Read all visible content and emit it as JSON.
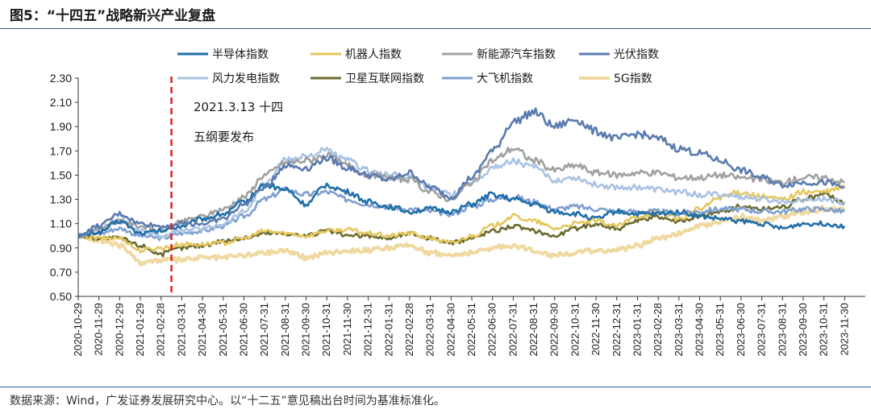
{
  "figure": {
    "title": "图5：“十四五”战略新兴产业复盘",
    "source": "数据来源：Wind，广发证券发展研究中心。以“十二五”意见稿出台时间为基准标准化。"
  },
  "chart_data": {
    "type": "line",
    "title": "“十四五”战略新兴产业复盘",
    "xlabel": "",
    "ylabel": "",
    "ylim": [
      0.5,
      2.3
    ],
    "yticks": [
      "0.50",
      "0.70",
      "0.90",
      "1.10",
      "1.30",
      "1.50",
      "1.70",
      "1.90",
      "2.10",
      "2.30"
    ],
    "categories": [
      "2020-10-29",
      "2020-11-29",
      "2020-12-29",
      "2021-01-29",
      "2021-02-28",
      "2021-03-31",
      "2021-04-30",
      "2021-05-31",
      "2021-06-30",
      "2021-07-31",
      "2021-08-31",
      "2021-09-30",
      "2021-10-31",
      "2021-11-30",
      "2021-12-31",
      "2022-01-31",
      "2022-02-28",
      "2022-03-31",
      "2022-04-30",
      "2022-05-31",
      "2022-06-30",
      "2022-07-31",
      "2022-08-31",
      "2022-09-30",
      "2022-10-31",
      "2022-11-30",
      "2022-12-31",
      "2023-01-31",
      "2023-02-28",
      "2023-03-31",
      "2023-04-30",
      "2023-05-31",
      "2023-06-30",
      "2023-07-31",
      "2023-08-31",
      "2023-09-30",
      "2023-10-31",
      "2023-11-30"
    ],
    "legend_position": "top",
    "annotation": {
      "line1": "2021.3.13 十四",
      "line2": "五纲要发布",
      "x_index": 4.5,
      "style": "red dashed vertical line"
    },
    "series": [
      {
        "name": "半导体指数",
        "color": "#1f6fa8",
        "values": [
          1.0,
          1.03,
          1.12,
          1.02,
          1.04,
          1.08,
          1.14,
          1.18,
          1.28,
          1.42,
          1.38,
          1.26,
          1.42,
          1.36,
          1.28,
          1.24,
          1.2,
          1.22,
          1.2,
          1.26,
          1.34,
          1.3,
          1.26,
          1.2,
          1.18,
          1.14,
          1.2,
          1.18,
          1.18,
          1.2,
          1.16,
          1.14,
          1.12,
          1.1,
          1.06,
          1.1,
          1.1,
          1.08
        ]
      },
      {
        "name": "机器人指数",
        "color": "#e5c75f",
        "values": [
          1.0,
          0.98,
          0.98,
          0.88,
          0.9,
          0.93,
          0.93,
          0.94,
          0.98,
          1.04,
          1.02,
          1.0,
          1.04,
          1.05,
          1.02,
          1.0,
          1.02,
          0.98,
          0.94,
          1.0,
          1.08,
          1.16,
          1.12,
          1.06,
          1.1,
          1.12,
          1.08,
          1.16,
          1.2,
          1.14,
          1.22,
          1.32,
          1.36,
          1.32,
          1.3,
          1.36,
          1.36,
          1.4
        ]
      },
      {
        "name": "新能源汽车指数",
        "color": "#a0a0a0",
        "values": [
          1.0,
          1.06,
          1.12,
          1.08,
          1.04,
          1.12,
          1.16,
          1.22,
          1.32,
          1.5,
          1.6,
          1.62,
          1.66,
          1.58,
          1.5,
          1.48,
          1.46,
          1.36,
          1.3,
          1.44,
          1.62,
          1.72,
          1.62,
          1.54,
          1.58,
          1.52,
          1.5,
          1.52,
          1.52,
          1.48,
          1.48,
          1.5,
          1.48,
          1.46,
          1.44,
          1.48,
          1.48,
          1.44
        ]
      },
      {
        "name": "光伏指数",
        "color": "#5a7bb0",
        "values": [
          1.0,
          1.08,
          1.18,
          1.1,
          1.08,
          1.1,
          1.1,
          1.14,
          1.26,
          1.4,
          1.58,
          1.56,
          1.64,
          1.56,
          1.5,
          1.46,
          1.52,
          1.4,
          1.32,
          1.48,
          1.7,
          1.94,
          2.02,
          1.9,
          1.96,
          1.86,
          1.8,
          1.84,
          1.8,
          1.72,
          1.68,
          1.62,
          1.54,
          1.48,
          1.42,
          1.44,
          1.44,
          1.4
        ]
      },
      {
        "name": "风力发电指数",
        "color": "#a9c2e3",
        "values": [
          1.0,
          1.06,
          1.14,
          1.04,
          1.0,
          1.04,
          1.06,
          1.1,
          1.2,
          1.42,
          1.62,
          1.66,
          1.7,
          1.62,
          1.54,
          1.5,
          1.48,
          1.4,
          1.34,
          1.44,
          1.56,
          1.62,
          1.56,
          1.46,
          1.48,
          1.42,
          1.4,
          1.4,
          1.38,
          1.36,
          1.34,
          1.34,
          1.32,
          1.3,
          1.28,
          1.3,
          1.3,
          1.28
        ]
      },
      {
        "name": "卫星互联网指数",
        "color": "#6b6a2e",
        "values": [
          1.0,
          0.98,
          0.98,
          0.92,
          0.85,
          0.9,
          0.92,
          0.96,
          0.98,
          1.02,
          1.02,
          1.0,
          1.04,
          1.0,
          1.0,
          0.98,
          1.02,
          0.98,
          0.94,
          0.98,
          1.04,
          1.08,
          1.04,
          1.0,
          1.06,
          1.1,
          1.06,
          1.12,
          1.16,
          1.12,
          1.16,
          1.2,
          1.24,
          1.22,
          1.24,
          1.3,
          1.34,
          1.28
        ]
      },
      {
        "name": "大飞机指数",
        "color": "#7f9fd1",
        "values": [
          1.0,
          1.02,
          1.06,
          1.0,
          0.98,
          1.02,
          1.04,
          1.08,
          1.16,
          1.3,
          1.38,
          1.34,
          1.36,
          1.3,
          1.26,
          1.24,
          1.22,
          1.2,
          1.18,
          1.24,
          1.3,
          1.32,
          1.28,
          1.22,
          1.24,
          1.22,
          1.2,
          1.2,
          1.2,
          1.18,
          1.2,
          1.22,
          1.22,
          1.2,
          1.2,
          1.22,
          1.22,
          1.2
        ]
      },
      {
        "name": "5G指数",
        "color": "#efd9a0",
        "values": [
          1.0,
          0.96,
          0.92,
          0.78,
          0.8,
          0.8,
          0.82,
          0.82,
          0.84,
          0.86,
          0.88,
          0.82,
          0.86,
          0.88,
          0.88,
          0.9,
          0.92,
          0.86,
          0.84,
          0.86,
          0.9,
          0.92,
          0.88,
          0.84,
          0.86,
          0.88,
          0.88,
          0.92,
          0.98,
          1.02,
          1.08,
          1.12,
          1.16,
          1.12,
          1.16,
          1.2,
          1.22,
          1.22
        ]
      }
    ]
  }
}
